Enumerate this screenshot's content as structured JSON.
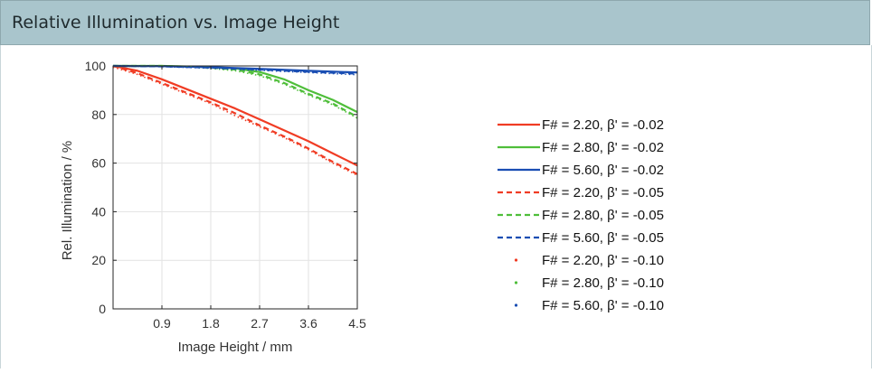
{
  "panel": {
    "title": "Relative Illumination vs. Image Height"
  },
  "chart_data": {
    "type": "line",
    "title": "",
    "xlabel": "Image Height / mm",
    "ylabel": "Rel. Illumination / %",
    "xlim": [
      0,
      4.5
    ],
    "ylim": [
      0,
      100
    ],
    "xticks": [
      0.9,
      1.8,
      2.7,
      3.6,
      4.5
    ],
    "yticks": [
      0,
      20,
      40,
      60,
      80,
      100
    ],
    "grid": true,
    "legend_position": "right",
    "series": [
      {
        "name": "F# = 2.20, β' = -0.02",
        "color": "#f03c24",
        "style": "solid",
        "x": [
          0,
          0.45,
          0.9,
          1.35,
          1.8,
          2.25,
          2.7,
          3.15,
          3.6,
          4.05,
          4.5
        ],
        "y": [
          100,
          98,
          94.5,
          90.5,
          86.5,
          82.5,
          78,
          73.5,
          69,
          64,
          59
        ]
      },
      {
        "name": "F# = 2.80, β' = -0.02",
        "color": "#4fbe3a",
        "style": "solid",
        "x": [
          0,
          0.45,
          0.9,
          1.35,
          1.8,
          2.25,
          2.7,
          3.15,
          3.6,
          4.05,
          4.5
        ],
        "y": [
          100,
          100,
          100,
          99.8,
          99.5,
          99,
          97.5,
          94.5,
          90,
          86,
          81
        ]
      },
      {
        "name": "F# = 5.60, β' = -0.02",
        "color": "#1a4eb3",
        "style": "solid",
        "x": [
          0,
          0.9,
          1.8,
          2.7,
          3.6,
          4.5
        ],
        "y": [
          100,
          99.9,
          99.5,
          98.8,
          98,
          97.3
        ]
      },
      {
        "name": "F# = 2.20, β' = -0.05",
        "color": "#f03c24",
        "style": "dashed",
        "x": [
          0,
          0.45,
          0.9,
          1.35,
          1.8,
          2.25,
          2.7,
          3.15,
          3.6,
          4.05,
          4.5
        ],
        "y": [
          100,
          97,
          93,
          89,
          85,
          80.5,
          75.5,
          71,
          66,
          60.5,
          55.5
        ]
      },
      {
        "name": "F# = 2.80, β' = -0.05",
        "color": "#4fbe3a",
        "style": "dashed",
        "x": [
          0,
          0.45,
          0.9,
          1.35,
          1.8,
          2.25,
          2.7,
          3.15,
          3.6,
          4.05,
          4.5
        ],
        "y": [
          100,
          100,
          100,
          99.7,
          99.3,
          98.5,
          96.5,
          93,
          88.5,
          84.5,
          79
        ]
      },
      {
        "name": "F# = 5.60, β' = -0.05",
        "color": "#1a4eb3",
        "style": "dashed",
        "x": [
          0,
          0.9,
          1.8,
          2.7,
          3.6,
          4.5
        ],
        "y": [
          100,
          99.8,
          99.3,
          98.5,
          97.6,
          96.8
        ]
      },
      {
        "name": "F# = 2.20, β' = -0.10",
        "color": "#f03c24",
        "style": "dotted",
        "x": [
          0,
          0.45,
          0.9,
          1.35,
          1.8,
          2.25,
          2.7,
          3.15,
          3.6,
          4.05,
          4.5
        ],
        "y": [
          99.5,
          96.5,
          92.5,
          88.5,
          84.5,
          79.5,
          75,
          70.5,
          65.5,
          60,
          55
        ]
      },
      {
        "name": "F# = 2.80, β' = -0.10",
        "color": "#4fbe3a",
        "style": "dotted",
        "x": [
          0,
          0.45,
          0.9,
          1.35,
          1.8,
          2.25,
          2.7,
          3.15,
          3.6,
          4.05,
          4.5
        ],
        "y": [
          100,
          100,
          100,
          99.6,
          99,
          98,
          96,
          92.5,
          88,
          84,
          78.5
        ]
      },
      {
        "name": "F# = 5.60, β' = -0.10",
        "color": "#1a4eb3",
        "style": "dotted",
        "x": [
          0,
          0.9,
          1.8,
          2.7,
          3.6,
          4.5
        ],
        "y": [
          100,
          99.7,
          99.1,
          98.2,
          97.3,
          96.4
        ]
      }
    ]
  }
}
